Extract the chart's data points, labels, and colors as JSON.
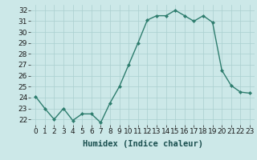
{
  "x": [
    0,
    1,
    2,
    3,
    4,
    5,
    6,
    7,
    8,
    9,
    10,
    11,
    12,
    13,
    14,
    15,
    16,
    17,
    18,
    19,
    20,
    21,
    22,
    23
  ],
  "y": [
    24.1,
    23.0,
    22.0,
    23.0,
    21.9,
    22.5,
    22.5,
    21.7,
    23.5,
    25.0,
    27.0,
    29.0,
    31.1,
    31.5,
    31.5,
    32.0,
    31.5,
    31.0,
    31.5,
    30.9,
    26.5,
    25.1,
    24.5,
    24.4
  ],
  "line_color": "#2e7d6e",
  "marker": "D",
  "marker_size": 2.0,
  "bg_color": "#cce8e8",
  "grid_color": "#aacfcf",
  "xlabel": "Humidex (Indice chaleur)",
  "ylim": [
    21.5,
    32.5
  ],
  "xlim": [
    -0.5,
    23.5
  ],
  "yticks": [
    22,
    23,
    24,
    25,
    26,
    27,
    28,
    29,
    30,
    31,
    32
  ],
  "xticks": [
    0,
    1,
    2,
    3,
    4,
    5,
    6,
    7,
    8,
    9,
    10,
    11,
    12,
    13,
    14,
    15,
    16,
    17,
    18,
    19,
    20,
    21,
    22,
    23
  ],
  "tick_fontsize": 6.5,
  "xlabel_fontsize": 7.5,
  "line_width": 1.0
}
